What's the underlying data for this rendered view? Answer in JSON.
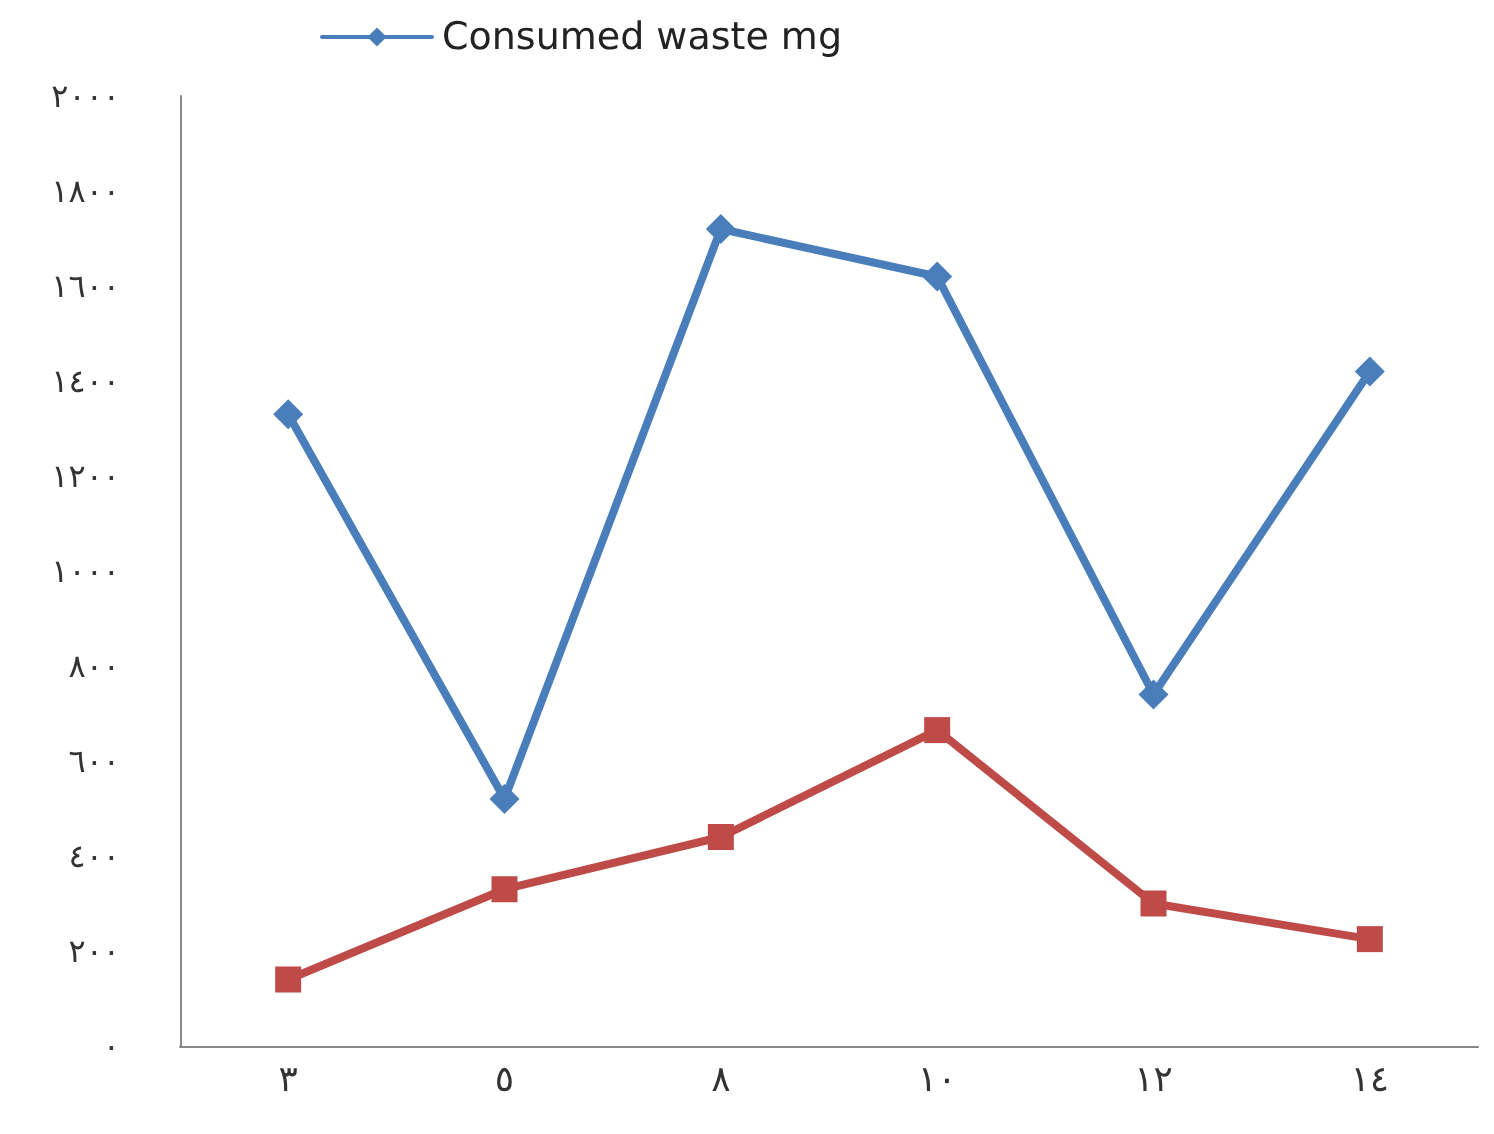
{
  "chart_data": {
    "type": "line",
    "categories": [
      "٣",
      "٥",
      "٨",
      "١٠",
      "١٢",
      "١٤"
    ],
    "series": [
      {
        "name": "Consumed waste mg",
        "color": "#4a7ebb",
        "marker": "diamond",
        "values": [
          1330,
          520,
          1720,
          1620,
          740,
          1420
        ]
      },
      {
        "color": "#be4b48",
        "marker": "square",
        "values": [
          140,
          330,
          440,
          665,
          300,
          225
        ]
      }
    ],
    "ylim": [
      0,
      2000
    ],
    "yticks": [
      {
        "value": 0,
        "label": "٠"
      },
      {
        "value": 200,
        "label": "٢٠٠"
      },
      {
        "value": 400,
        "label": "٤٠٠"
      },
      {
        "value": 600,
        "label": "٦٠٠"
      },
      {
        "value": 800,
        "label": "٨٠٠"
      },
      {
        "value": 1000,
        "label": "١٠٠٠"
      },
      {
        "value": 1200,
        "label": "١٢٠٠"
      },
      {
        "value": 1400,
        "label": "١٤٠٠"
      },
      {
        "value": 1600,
        "label": "١٦٠٠"
      },
      {
        "value": 1800,
        "label": "١٨٠٠"
      },
      {
        "value": 2000,
        "label": "٢٠٠٠"
      }
    ],
    "grid": false,
    "legend": "top",
    "line_style": "solid"
  }
}
